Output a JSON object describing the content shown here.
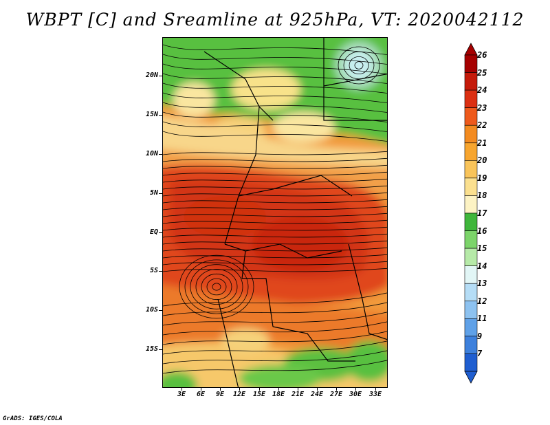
{
  "title": "WBPT [C] and Sreamline at 925hPa, VT: 2020042112",
  "credit": "GrADS: IGES/COLA",
  "map": {
    "lat_labels": [
      "20N",
      "15N",
      "10N",
      "5N",
      "EQ",
      "5S",
      "10S",
      "15S"
    ],
    "lon_labels": [
      "3E",
      "6E",
      "9E",
      "12E",
      "15E",
      "18E",
      "21E",
      "24E",
      "27E",
      "30E",
      "33E"
    ]
  },
  "colorbar": {
    "levels": [
      "26",
      "25",
      "24",
      "23",
      "22",
      "21",
      "20",
      "19",
      "18",
      "17",
      "16",
      "15",
      "14",
      "13",
      "12",
      "11",
      "9",
      "7"
    ],
    "colors": [
      "#a50000",
      "#c51a0a",
      "#db2f12",
      "#ee5a1c",
      "#f38b20",
      "#f7a52e",
      "#f9c45a",
      "#fbe08f",
      "#fdf3c4",
      "#3fb63b",
      "#7cd46a",
      "#b6eaa8",
      "#e2f6f6",
      "#b5ddf6",
      "#8dc2f0",
      "#5fa1e8",
      "#3d80dc",
      "#1f5ed0"
    ]
  }
}
